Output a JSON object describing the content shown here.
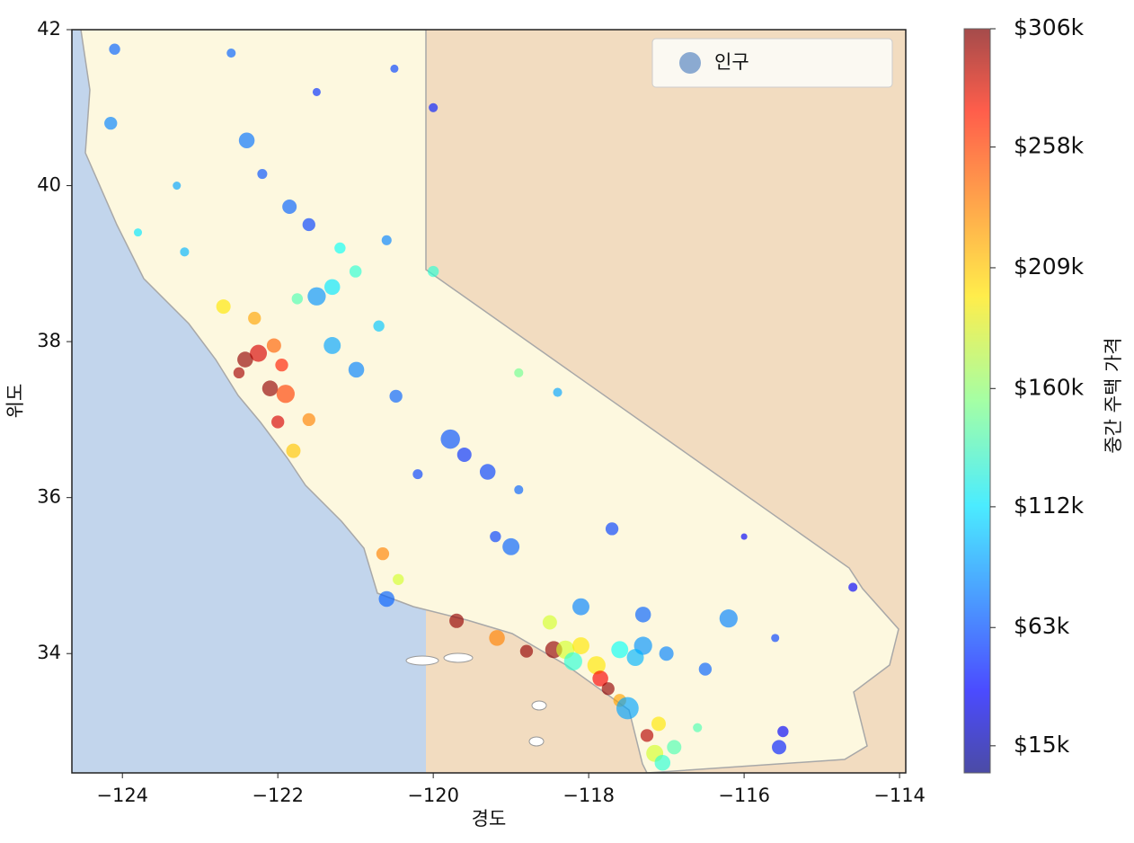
{
  "chart_data": {
    "type": "scatter",
    "xlabel": "경도",
    "ylabel": "위도",
    "colorbar_label": "중간 주택 가격",
    "xlim": [
      -124.65,
      -113.92
    ],
    "ylim": [
      32.47,
      42.0
    ],
    "xticks": [
      {
        "value": -124,
        "label": "−124"
      },
      {
        "value": -122,
        "label": "−122"
      },
      {
        "value": -120,
        "label": "−120"
      },
      {
        "value": -118,
        "label": "−118"
      },
      {
        "value": -116,
        "label": "−116"
      },
      {
        "value": -114,
        "label": "−114"
      }
    ],
    "yticks": [
      34,
      36,
      38,
      40,
      42
    ],
    "clim": [
      4000,
      306000
    ],
    "cticks": [
      {
        "value": 15000,
        "label": "$15k"
      },
      {
        "value": 63000,
        "label": "$63k"
      },
      {
        "value": 112000,
        "label": "$112k"
      },
      {
        "value": 160000,
        "label": "$160k"
      },
      {
        "value": 209000,
        "label": "$209k"
      },
      {
        "value": 258000,
        "label": "$258k"
      },
      {
        "value": 306000,
        "label": "$306k"
      }
    ],
    "colormap": "jet",
    "alpha": 0.65,
    "legend": "upper right",
    "series": [
      {
        "name": "인구",
        "color": "#6f96c8",
        "x": [
          -124.15,
          -124.1,
          -123.8,
          -123.2,
          -122.4,
          -122.2,
          -121.85,
          -121.6,
          -121.2,
          -121.5,
          -121.3,
          -121.0,
          -121.75,
          -122.7,
          -122.3,
          -122.25,
          -122.42,
          -122.05,
          -122.1,
          -121.9,
          -121.95,
          -122.5,
          -121.8,
          -122.0,
          -121.3,
          -120.99,
          -120.48,
          -119.78,
          -119.6,
          -119.3,
          -119.0,
          -119.2,
          -120.65,
          -120.45,
          -119.7,
          -119.18,
          -118.8,
          -118.45,
          -118.3,
          -118.2,
          -118.1,
          -117.9,
          -117.85,
          -117.75,
          -117.6,
          -117.3,
          -117.4,
          -117.0,
          -116.5,
          -116.2,
          -117.3,
          -118.1,
          -118.5,
          -117.15,
          -117.05,
          -117.25,
          -117.1,
          -116.9,
          -115.55,
          -115.5,
          -114.6,
          -115.6,
          -116.0,
          -117.7,
          -118.9,
          -118.4,
          -120.0,
          -120.0,
          -120.5,
          -121.5,
          -122.6,
          -123.3,
          -120.6,
          -121.6,
          -120.7,
          -120.2,
          -118.9,
          -116.6,
          -117.6,
          -120.6,
          -117.5
        ],
        "values": [
          40.8,
          41.75,
          39.4,
          39.15,
          40.58,
          40.15,
          39.73,
          39.5,
          39.2,
          38.58,
          38.7,
          38.9,
          38.55,
          38.45,
          38.3,
          37.85,
          37.77,
          37.95,
          37.4,
          37.33,
          37.7,
          37.6,
          36.6,
          36.97,
          37.95,
          37.64,
          37.3,
          36.75,
          36.55,
          36.33,
          35.37,
          35.5,
          35.28,
          34.95,
          34.42,
          34.2,
          34.03,
          34.05,
          34.05,
          33.9,
          34.1,
          33.85,
          33.68,
          33.55,
          34.05,
          34.1,
          33.95,
          34.0,
          33.8,
          34.45,
          34.5,
          34.6,
          34.4,
          32.72,
          32.6,
          32.95,
          33.1,
          32.8,
          32.8,
          33.0,
          34.85,
          34.2,
          35.5,
          35.6,
          37.6,
          37.35,
          38.9,
          41.0,
          41.5,
          41.2,
          41.7,
          40.0,
          39.3,
          37.0,
          38.2,
          36.3,
          36.1,
          33.05,
          33.4,
          34.7,
          33.3
        ],
        "sizes": [
          20,
          15,
          8,
          10,
          30,
          12,
          25,
          20,
          15,
          40,
          30,
          18,
          15,
          25,
          20,
          35,
          30,
          25,
          30,
          40,
          20,
          15,
          25,
          20,
          35,
          30,
          20,
          45,
          25,
          30,
          35,
          15,
          20,
          15,
          25,
          30,
          20,
          35,
          40,
          40,
          35,
          40,
          30,
          20,
          35,
          40,
          35,
          25,
          20,
          40,
          30,
          35,
          25,
          35,
          30,
          20,
          25,
          25,
          25,
          15,
          10,
          8,
          5,
          20,
          10,
          10,
          15,
          10,
          8,
          8,
          10,
          8,
          12,
          20,
          15,
          12,
          10,
          10,
          20,
          30,
          60
        ],
        "c": [
          80000,
          70000,
          110000,
          95000,
          75000,
          65000,
          70000,
          60000,
          120000,
          85000,
          110000,
          130000,
          140000,
          200000,
          220000,
          280000,
          300000,
          240000,
          300000,
          250000,
          260000,
          295000,
          210000,
          280000,
          90000,
          80000,
          70000,
          65000,
          55000,
          60000,
          70000,
          60000,
          230000,
          180000,
          300000,
          230000,
          300000,
          300000,
          180000,
          130000,
          200000,
          200000,
          270000,
          300000,
          120000,
          85000,
          95000,
          80000,
          70000,
          80000,
          70000,
          80000,
          180000,
          180000,
          130000,
          290000,
          200000,
          140000,
          50000,
          40000,
          40000,
          60000,
          40000,
          60000,
          150000,
          90000,
          130000,
          50000,
          60000,
          55000,
          70000,
          90000,
          80000,
          230000,
          100000,
          60000,
          70000,
          140000,
          220000,
          70000,
          90000
        ]
      }
    ]
  }
}
